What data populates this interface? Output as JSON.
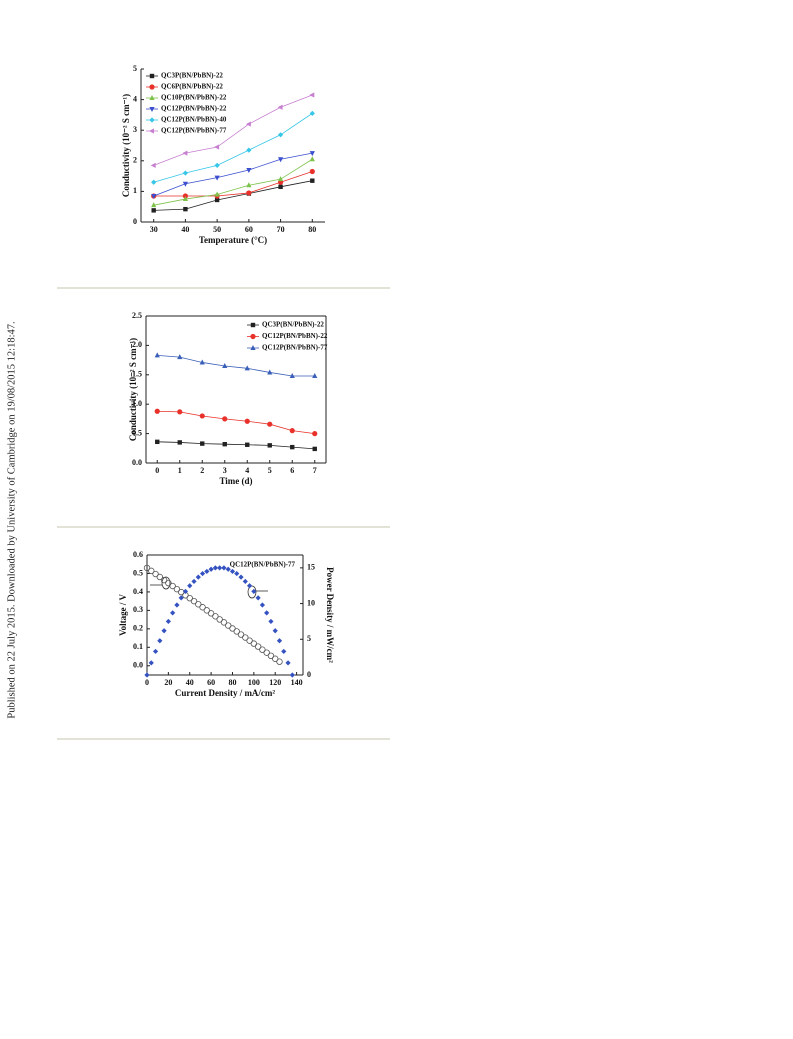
{
  "watermark": "Published on 22 July 2015. Downloaded by University of Cambridge on 19/08/2015 12:18:47.",
  "chart_data": [
    {
      "type": "line",
      "x_label": "Temperature (°C)",
      "y_label": "Conductivity (10⁻² S cm⁻¹)",
      "x": [
        30,
        40,
        50,
        60,
        70,
        80
      ],
      "xlim": [
        26,
        84
      ],
      "xticks": [
        30,
        40,
        50,
        60,
        70,
        80
      ],
      "ylim": [
        0,
        5
      ],
      "yticks": [
        0,
        1,
        2,
        3,
        4,
        5
      ],
      "legend": "top-left",
      "series": [
        {
          "name": "QC3P(BN/PbBN)-22",
          "color": "#222222",
          "marker": "square",
          "values": [
            0.38,
            0.42,
            0.72,
            0.93,
            1.15,
            1.35
          ]
        },
        {
          "name": "QC6P(BN/PbBN)-22",
          "color": "#e8312a",
          "marker": "circle",
          "values": [
            0.85,
            0.85,
            0.85,
            0.95,
            1.3,
            1.65
          ]
        },
        {
          "name": "QC10P(BN/PbBN)-22",
          "color": "#7dc24a",
          "marker": "triangle-up",
          "values": [
            0.55,
            0.75,
            0.9,
            1.2,
            1.4,
            2.05
          ]
        },
        {
          "name": "QC12P(BN/PbBN)-22",
          "color": "#3b4fcf",
          "marker": "triangle-down",
          "values": [
            0.85,
            1.25,
            1.45,
            1.7,
            2.05,
            2.25
          ]
        },
        {
          "name": "QC12P(BN/PbBN)-40",
          "color": "#35c6e8",
          "marker": "diamond",
          "values": [
            1.3,
            1.6,
            1.85,
            2.35,
            2.85,
            3.55
          ]
        },
        {
          "name": "QC12P(BN/PbBN)-77",
          "color": "#c77fd0",
          "marker": "triangle-left",
          "values": [
            1.85,
            2.25,
            2.45,
            3.2,
            3.75,
            4.15
          ]
        }
      ]
    },
    {
      "type": "line",
      "x_label": "Time (d)",
      "y_label": "Conductivity (10⁻² S cm⁻¹)",
      "x": [
        0,
        1,
        2,
        3,
        4,
        5,
        6,
        7
      ],
      "xlim": [
        -0.5,
        7.5
      ],
      "xticks": [
        0,
        1,
        2,
        3,
        4,
        5,
        6,
        7
      ],
      "ylim": [
        0,
        2.5
      ],
      "yticks": [
        {
          "value": 0,
          "label": "0.0"
        },
        0.5,
        {
          "value": 1,
          "label": "1.0"
        },
        1.5,
        {
          "value": 2,
          "label": "2.0"
        },
        2.5
      ],
      "legend": "top-right",
      "series": [
        {
          "name": "QC3P(BN/PbBN)-22",
          "color": "#222222",
          "marker": "square",
          "values": [
            0.36,
            0.35,
            0.33,
            0.32,
            0.31,
            0.3,
            0.27,
            0.24
          ]
        },
        {
          "name": "QC12P(BN/PbBN)-22",
          "color": "#e8312a",
          "marker": "circle",
          "values": [
            0.88,
            0.87,
            0.8,
            0.75,
            0.71,
            0.66,
            0.55,
            0.5
          ]
        },
        {
          "name": "QC12P(BN/PbBN)-77",
          "color": "#3a5fb8",
          "marker": "triangle-up",
          "values": [
            1.83,
            1.8,
            1.71,
            1.65,
            1.61,
            1.54,
            1.48,
            1.48
          ]
        }
      ]
    },
    {
      "type": "scatter",
      "x_label": "Current Density / mA/cm²",
      "y_label": "Voltage / V",
      "y2_label": "Power Density / mW/cm²",
      "annotation": "QC12P(BN/PbBN)-77",
      "xlim": [
        0,
        146
      ],
      "xticks": [
        0,
        20,
        40,
        60,
        80,
        100,
        120,
        140
      ],
      "ylim": [
        -0.05,
        0.6
      ],
      "yticks": [
        {
          "value": 0,
          "label": "0.0"
        },
        0.1,
        0.2,
        0.3,
        0.4,
        0.5,
        0.6
      ],
      "y2lim": [
        0,
        16.8
      ],
      "y2ticks": [
        0,
        5,
        10,
        15
      ],
      "series": [
        {
          "color": "#555555",
          "marker": "open-circle",
          "x": [
            0,
            4,
            8,
            12,
            16,
            20,
            24,
            28,
            32,
            36,
            40,
            44,
            48,
            52,
            56,
            60,
            64,
            68,
            72,
            76,
            80,
            84,
            88,
            92,
            96,
            100,
            104,
            108,
            112,
            116,
            120,
            124
          ],
          "values": [
            0.53,
            0.514,
            0.497,
            0.481,
            0.464,
            0.448,
            0.432,
            0.415,
            0.399,
            0.382,
            0.366,
            0.35,
            0.333,
            0.317,
            0.3,
            0.284,
            0.268,
            0.251,
            0.235,
            0.218,
            0.202,
            0.186,
            0.169,
            0.153,
            0.136,
            0.12,
            0.104,
            0.087,
            0.071,
            0.054,
            0.038,
            0.022
          ]
        },
        {
          "color": "#3452c0",
          "marker": "diamond",
          "axis": "y2",
          "x": [
            0,
            4,
            8,
            12,
            16,
            20,
            24,
            28,
            32,
            36,
            40,
            44,
            48,
            52,
            56,
            60,
            64,
            68,
            72,
            76,
            80,
            84,
            88,
            92,
            96,
            100,
            104,
            108,
            112,
            116,
            120,
            124,
            128,
            132,
            136
          ],
          "values": [
            0,
            1.7,
            3.3,
            4.8,
            6.2,
            7.5,
            8.7,
            9.8,
            10.8,
            11.7,
            12.5,
            13.1,
            13.7,
            14.2,
            14.5,
            14.8,
            15.0,
            15.0,
            15.0,
            14.8,
            14.5,
            14.2,
            13.7,
            13.1,
            12.5,
            11.7,
            10.8,
            9.8,
            8.7,
            7.5,
            6.2,
            4.8,
            3.3,
            1.7,
            0
          ]
        }
      ]
    }
  ]
}
